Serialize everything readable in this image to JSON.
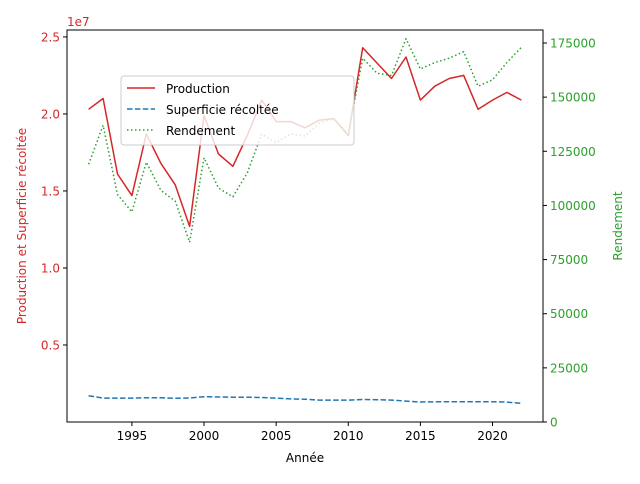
{
  "chart_data": {
    "type": "line",
    "title": "",
    "xlabel": "Année",
    "ylabel_left": "Production et Superficie récoltée",
    "ylabel_right": "Rendement",
    "left_offset_label": "1e7",
    "xlim": [
      1990.5,
      2023.5
    ],
    "ylim_left": [
      0,
      25450000
    ],
    "ylim_right": [
      0,
      181000
    ],
    "x_ticks": [
      1995,
      2000,
      2005,
      2010,
      2015,
      2020
    ],
    "x_tick_labels": [
      "1995",
      "2000",
      "2005",
      "2010",
      "2015",
      "2020"
    ],
    "y_left_ticks": [
      5000000,
      10000000,
      15000000,
      20000000,
      25000000
    ],
    "y_left_tick_labels": [
      "0.5",
      "1.0",
      "1.5",
      "2.0",
      "2.5"
    ],
    "y_right_ticks": [
      0,
      25000,
      50000,
      75000,
      100000,
      125000,
      150000,
      175000
    ],
    "y_right_tick_labels": [
      "0",
      "25000",
      "50000",
      "75000",
      "100000",
      "125000",
      "150000",
      "175000"
    ],
    "legend_position": "upper-left-inset",
    "grid": false,
    "x": [
      1992,
      1993,
      1994,
      1995,
      1996,
      1997,
      1998,
      1999,
      2000,
      2001,
      2002,
      2003,
      2004,
      2005,
      2006,
      2007,
      2008,
      2009,
      2010,
      2011,
      2012,
      2013,
      2014,
      2015,
      2016,
      2017,
      2018,
      2019,
      2020,
      2021,
      2022
    ],
    "series": [
      {
        "name": "Production",
        "axis": "left",
        "color": "#d62728",
        "style": "solid",
        "values": [
          20300000,
          21000000,
          16100000,
          14700000,
          18700000,
          16800000,
          15400000,
          12700000,
          19900000,
          17400000,
          16600000,
          18600000,
          20900000,
          19500000,
          19500000,
          19100000,
          19600000,
          19700000,
          18600000,
          24300000,
          23300000,
          22300000,
          23700000,
          20900000,
          21800000,
          22300000,
          22500000,
          20300000,
          20900000,
          21400000,
          20900000
        ]
      },
      {
        "name": "Superficie récoltée",
        "axis": "left",
        "color": "#1f77b4",
        "style": "dashed",
        "values": [
          1700000,
          1550000,
          1550000,
          1550000,
          1570000,
          1580000,
          1540000,
          1560000,
          1640000,
          1620000,
          1610000,
          1610000,
          1590000,
          1550000,
          1500000,
          1480000,
          1420000,
          1420000,
          1420000,
          1460000,
          1450000,
          1420000,
          1360000,
          1300000,
          1310000,
          1320000,
          1320000,
          1320000,
          1320000,
          1290000,
          1210000
        ]
      },
      {
        "name": "Rendement",
        "axis": "right",
        "color": "#2ca02c",
        "style": "dotted",
        "values": [
          119000,
          137000,
          105000,
          97000,
          120000,
          107000,
          102000,
          83000,
          122000,
          108000,
          104000,
          115000,
          133000,
          129000,
          133000,
          132000,
          138000,
          140000,
          133000,
          168000,
          161000,
          160000,
          177000,
          163000,
          166000,
          168000,
          171000,
          155000,
          158000,
          166000,
          173000
        ]
      }
    ]
  }
}
